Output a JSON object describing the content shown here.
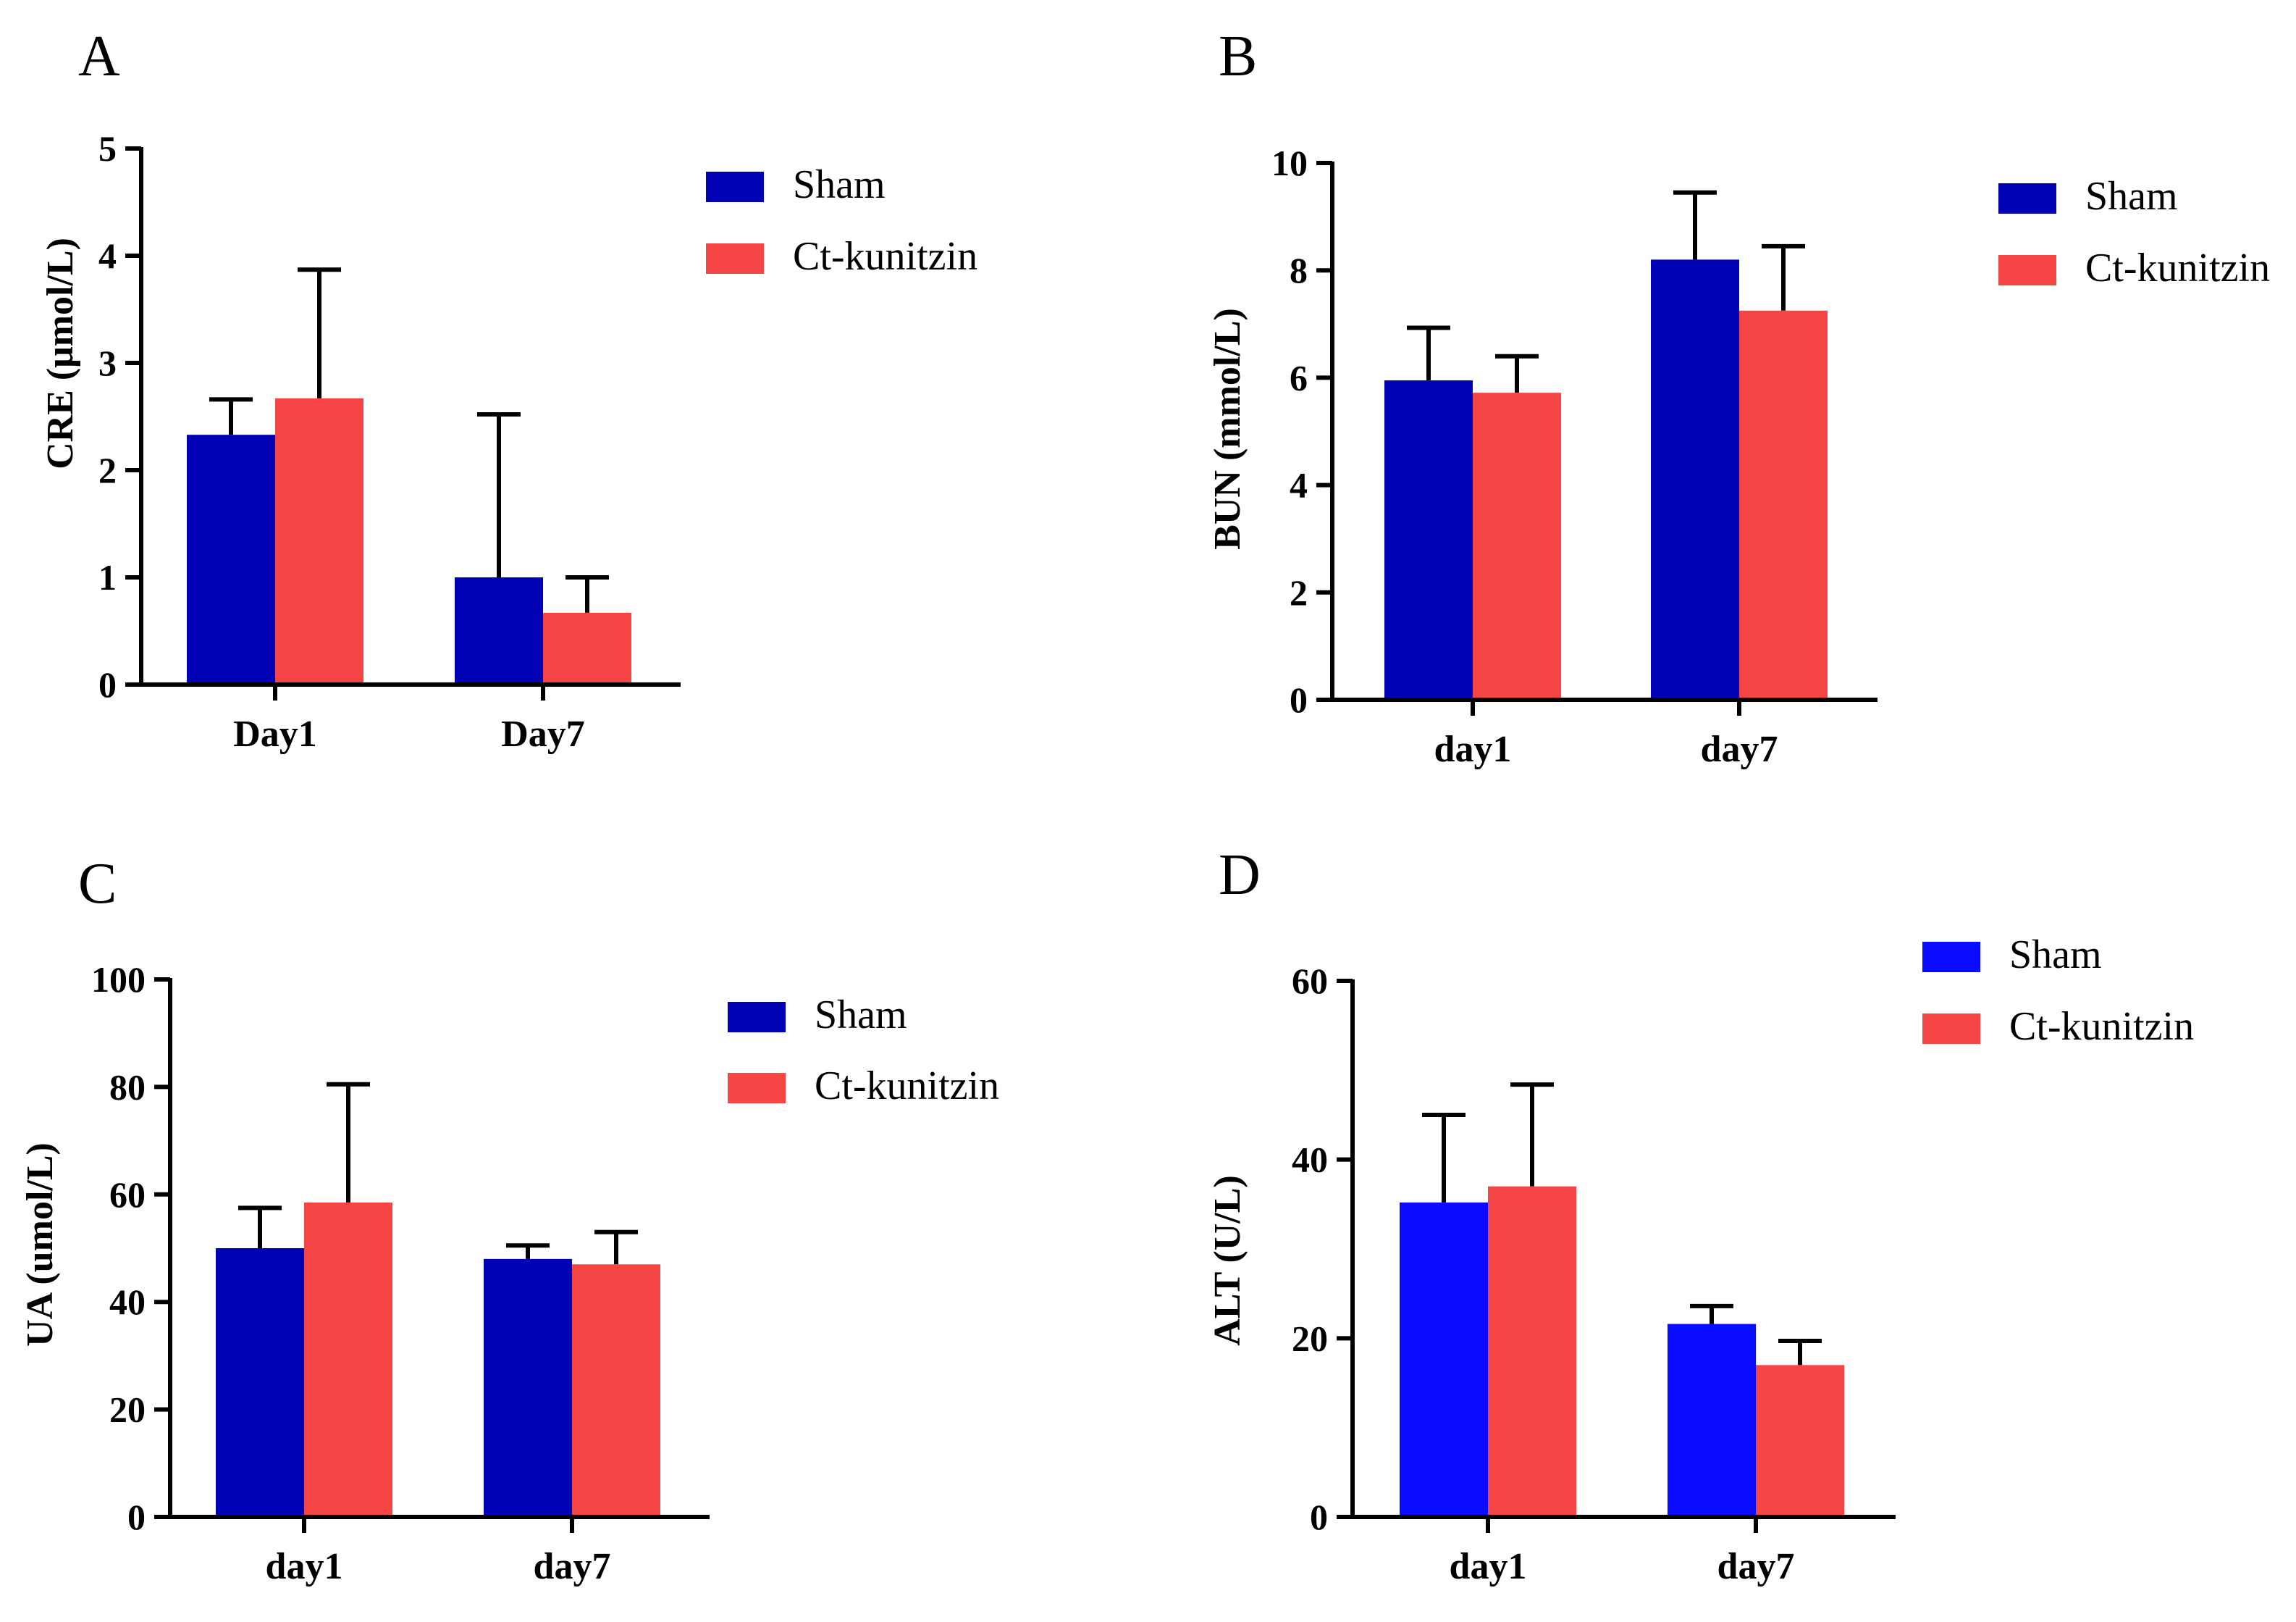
{
  "chart_data": [
    {
      "panel": "A",
      "type": "bar",
      "ylabel": "CRE (μmol/L)",
      "categories": [
        "Day1",
        "Day7"
      ],
      "ylim": [
        0,
        5
      ],
      "yticks": [
        "0",
        "1",
        "2",
        "3",
        "4",
        "5"
      ],
      "legend": {
        "position": "top-right"
      },
      "series": [
        {
          "name": "Sham",
          "color": "#0000b4",
          "values": [
            2.33,
            1.0
          ],
          "errors": [
            0.33,
            1.52
          ]
        },
        {
          "name": "Ct-kunitzin",
          "color": "#f44444",
          "values": [
            2.67,
            0.67
          ],
          "errors": [
            1.2,
            0.33
          ]
        }
      ]
    },
    {
      "panel": "B",
      "type": "bar",
      "ylabel": "BUN (mmol/L)",
      "categories": [
        "day1",
        "day7"
      ],
      "ylim": [
        0,
        10
      ],
      "yticks": [
        "0",
        "2",
        "4",
        "6",
        "8",
        "10"
      ],
      "legend": {
        "position": "top-right"
      },
      "series": [
        {
          "name": "Sham",
          "color": "#0000b4",
          "values": [
            5.95,
            8.2
          ],
          "errors": [
            0.98,
            1.25
          ]
        },
        {
          "name": "Ct-kunitzin",
          "color": "#f44444",
          "values": [
            5.72,
            7.25
          ],
          "errors": [
            0.68,
            1.2
          ]
        }
      ]
    },
    {
      "panel": "C",
      "type": "bar",
      "ylabel": "UA (umol/L)",
      "categories": [
        "day1",
        "day7"
      ],
      "ylim": [
        0,
        100
      ],
      "yticks": [
        "0",
        "20",
        "40",
        "60",
        "80",
        "100"
      ],
      "legend": {
        "position": "top-right"
      },
      "series": [
        {
          "name": "Sham",
          "color": "#0000b4",
          "values": [
            50,
            48
          ],
          "errors": [
            7.5,
            2.5
          ]
        },
        {
          "name": "Ct-kunitzin",
          "color": "#f44444",
          "values": [
            58.5,
            47
          ],
          "errors": [
            22,
            6
          ]
        }
      ]
    },
    {
      "panel": "D",
      "type": "bar",
      "ylabel": "ALT (U/L)",
      "categories": [
        "day1",
        "day7"
      ],
      "ylim": [
        0,
        60
      ],
      "yticks": [
        "0",
        "20",
        "40",
        "60"
      ],
      "legend": {
        "position": "top-right"
      },
      "series": [
        {
          "name": "Sham",
          "color": "#0a0aff",
          "values": [
            35.2,
            21.6
          ],
          "errors": [
            9.8,
            2.0
          ]
        },
        {
          "name": "Ct-kunitzin",
          "color": "#f44444",
          "values": [
            37,
            17
          ],
          "errors": [
            11.4,
            2.7
          ]
        }
      ]
    }
  ]
}
